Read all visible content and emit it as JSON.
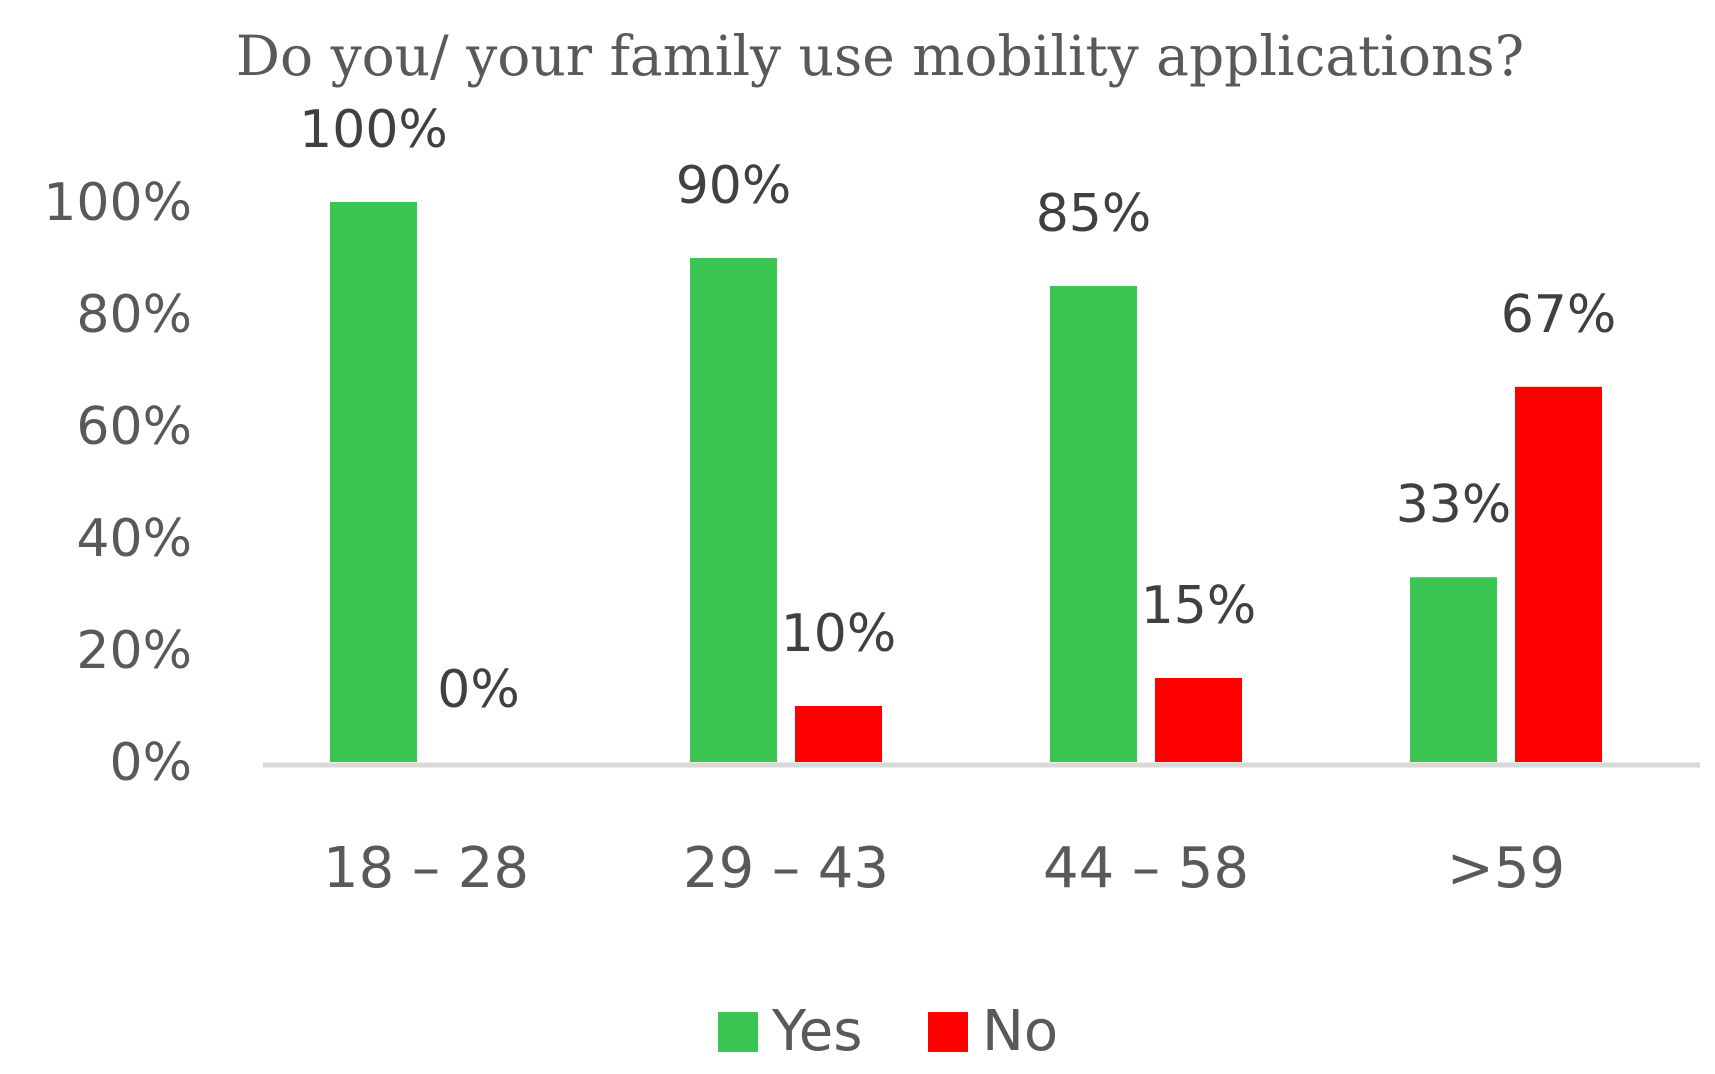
{
  "chart_data": {
    "type": "bar",
    "title": "Do you/ your family use mobility applications?",
    "categories": [
      "18 – 28",
      "29 – 43",
      "44 – 58",
      ">59"
    ],
    "series": [
      {
        "name": "Yes",
        "color": "#3BC552",
        "values": [
          100,
          90,
          85,
          33
        ],
        "labels": [
          "100%",
          "90%",
          "85%",
          "33%"
        ]
      },
      {
        "name": "No",
        "color": "#FF0000",
        "values": [
          0,
          10,
          15,
          67
        ],
        "labels": [
          "0%",
          "10%",
          "15%",
          "67%"
        ]
      }
    ],
    "y_ticks": [
      "0%",
      "20%",
      "40%",
      "60%",
      "80%",
      "100%"
    ],
    "ylim": [
      0,
      100
    ],
    "xlabel": "",
    "ylabel": "",
    "grid": false,
    "legend": "bottom",
    "axis_color": "#D9D9D9"
  }
}
